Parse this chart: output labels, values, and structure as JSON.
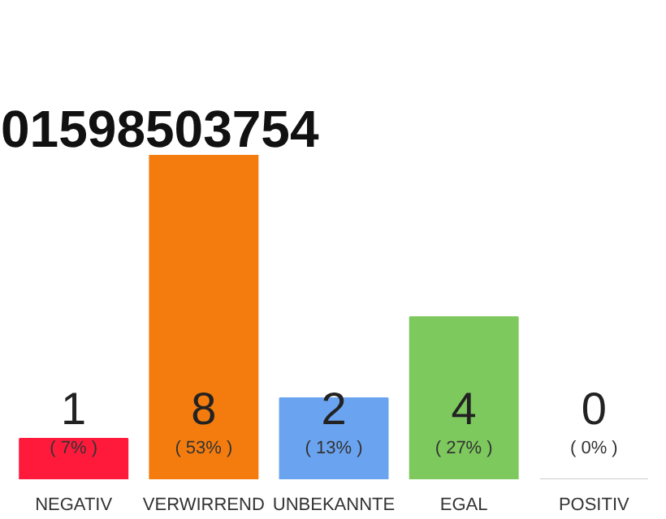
{
  "chart_data": {
    "type": "bar",
    "title": "01598503754",
    "data_labels": true,
    "categories": [
      "NEGATIV",
      "VERWIRREND",
      "UNBEKANNTE",
      "EGAL",
      "POSITIV"
    ],
    "values": [
      1,
      8,
      2,
      4,
      0
    ],
    "colors": [
      "#ff1a3c",
      "#f47c0e",
      "#6aa3ef",
      "#7dc95e",
      "#cccccc"
    ],
    "annotations": [
      "( 7% )",
      "( 53% )",
      "( 13% )",
      "( 27% )",
      "( 0% )"
    ],
    "tick_labels": "x",
    "grid": false
  }
}
